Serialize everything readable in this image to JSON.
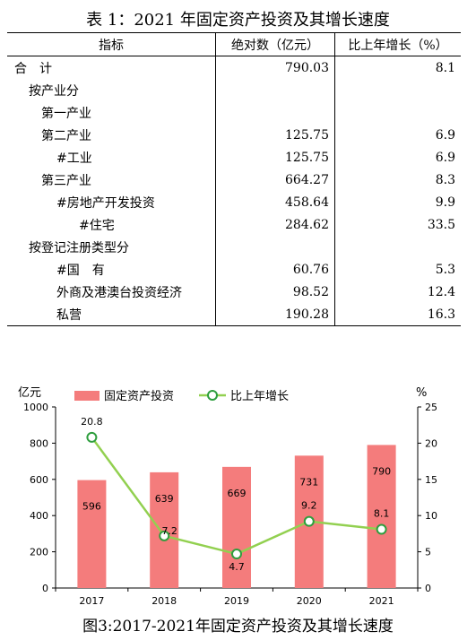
{
  "table": {
    "title": "表 1：2021 年固定资产投资及其增长速度",
    "headers": [
      "指标",
      "绝对数（亿元）",
      "比上年增长（%）"
    ],
    "rows": [
      {
        "name": "合　计",
        "value": "790.03",
        "growth": "8.1",
        "level": 0
      },
      {
        "name": "按产业分",
        "value": "",
        "growth": "",
        "level": 1
      },
      {
        "name": "第一产业",
        "value": "",
        "growth": "",
        "level": 2
      },
      {
        "name": "第二产业",
        "value": "125.75",
        "growth": "6.9",
        "level": 2
      },
      {
        "name": "#工业",
        "value": "125.75",
        "growth": "6.9",
        "level": 3
      },
      {
        "name": "第三产业",
        "value": "664.27",
        "growth": "8.3",
        "level": 2
      },
      {
        "name": "#房地产开发投资",
        "value": "458.64",
        "growth": "9.9",
        "level": 3
      },
      {
        "name": "#住宅",
        "value": "284.62",
        "growth": "33.5",
        "level": 4
      },
      {
        "name": "按登记注册类型分",
        "value": "",
        "growth": "",
        "level": 1
      },
      {
        "name": "#国　有",
        "value": "60.76",
        "growth": "5.3",
        "level": 3
      },
      {
        "name": "外商及港澳台投资经济",
        "value": "98.52",
        "growth": "12.4",
        "level": 3
      },
      {
        "name": "私营",
        "value": "190.28",
        "growth": "16.3",
        "level": 3
      }
    ]
  },
  "chart_data": {
    "type": "bar",
    "title": "图3:2017-2021年固定资产投资及其增长速度",
    "categories": [
      "2017",
      "2018",
      "2019",
      "2020",
      "2021"
    ],
    "series": [
      {
        "name": "固定资产投资",
        "kind": "bar",
        "axis": "left",
        "color": "#f47c7c",
        "values": [
          596,
          639,
          669,
          731,
          790
        ],
        "labels": [
          "596",
          "639",
          "669",
          "731",
          "790"
        ]
      },
      {
        "name": "比上年增长",
        "kind": "line",
        "axis": "right",
        "color": "#92d050",
        "values": [
          20.8,
          7.2,
          4.7,
          9.2,
          8.1
        ],
        "labels": [
          "20.8",
          "7.2",
          "4.7",
          "9.2",
          "8.1"
        ]
      }
    ],
    "ylabel_left": "亿元",
    "ylabel_right": "%",
    "ylim_left": [
      0,
      1000
    ],
    "yticks_left": [
      "0",
      "200",
      "400",
      "600",
      "800",
      "1000"
    ],
    "ylim_right": [
      0,
      25
    ],
    "yticks_right": [
      "0",
      "5",
      "10",
      "15",
      "20",
      "25"
    ],
    "grid": false,
    "legend": "top-center"
  }
}
